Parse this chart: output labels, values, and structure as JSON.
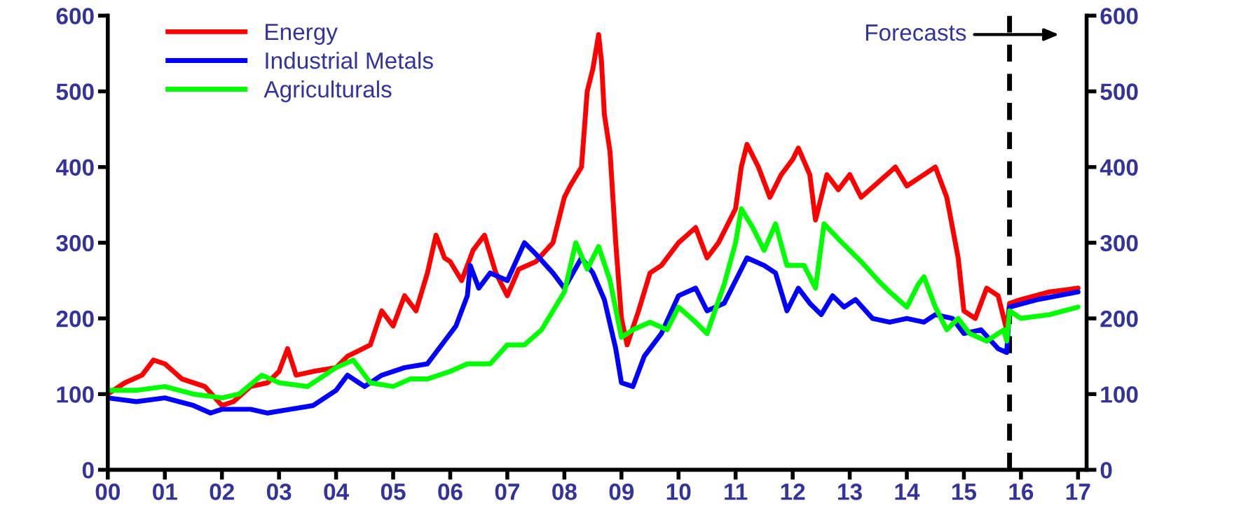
{
  "chart_data": {
    "type": "line",
    "xlim": [
      0,
      17.15
    ],
    "ylim": [
      0,
      600
    ],
    "yticks": [
      0,
      100,
      200,
      300,
      400,
      500,
      600
    ],
    "y2lim": [
      0,
      600
    ],
    "y2ticks": [
      0,
      100,
      200,
      300,
      400,
      500,
      600
    ],
    "xticks": [
      {
        "value": 0,
        "label": "00"
      },
      {
        "value": 1,
        "label": "01"
      },
      {
        "value": 2,
        "label": "02"
      },
      {
        "value": 3,
        "label": "03"
      },
      {
        "value": 4,
        "label": "04"
      },
      {
        "value": 5,
        "label": "05"
      },
      {
        "value": 6,
        "label": "06"
      },
      {
        "value": 7,
        "label": "07"
      },
      {
        "value": 8,
        "label": "08"
      },
      {
        "value": 9,
        "label": "09"
      },
      {
        "value": 10,
        "label": "10"
      },
      {
        "value": 11,
        "label": "11"
      },
      {
        "value": 12,
        "label": "12"
      },
      {
        "value": 13,
        "label": "13"
      },
      {
        "value": 14,
        "label": "14"
      },
      {
        "value": 15,
        "label": "15"
      },
      {
        "value": 16,
        "label": "16"
      },
      {
        "value": 17,
        "label": "17"
      }
    ],
    "legend": "top left",
    "grid": false,
    "marker": "none",
    "line_style": "solid",
    "ref_lines": [
      {
        "axis": "x",
        "value": 15.8,
        "label": "Forecasts",
        "color": "#000000",
        "line_style": "dashed"
      }
    ],
    "series": [
      {
        "name": "Energy",
        "color": "#ff0000",
        "x": [
          0,
          0.3,
          0.6,
          0.8,
          1.0,
          1.3,
          1.7,
          2.0,
          2.2,
          2.5,
          2.8,
          3.0,
          3.15,
          3.3,
          3.6,
          4.0,
          4.2,
          4.6,
          4.8,
          5.0,
          5.2,
          5.4,
          5.6,
          5.75,
          5.9,
          6.0,
          6.2,
          6.4,
          6.6,
          6.8,
          7.0,
          7.2,
          7.5,
          7.8,
          8.0,
          8.1,
          8.3,
          8.4,
          8.5,
          8.6,
          8.65,
          8.7,
          8.8,
          8.9,
          9.0,
          9.1,
          9.3,
          9.5,
          9.7,
          10.0,
          10.3,
          10.5,
          10.7,
          11.0,
          11.1,
          11.2,
          11.4,
          11.6,
          11.8,
          12.0,
          12.1,
          12.3,
          12.4,
          12.6,
          12.8,
          13.0,
          13.2,
          13.5,
          13.8,
          14.0,
          14.3,
          14.5,
          14.7,
          14.9,
          15.0,
          15.2,
          15.4,
          15.6,
          15.75,
          15.8,
          16.0,
          16.5,
          17.0
        ],
        "values": [
          100,
          115,
          125,
          145,
          140,
          120,
          110,
          85,
          90,
          110,
          115,
          130,
          160,
          125,
          130,
          135,
          150,
          165,
          210,
          190,
          230,
          210,
          260,
          310,
          280,
          275,
          250,
          290,
          310,
          260,
          230,
          265,
          275,
          300,
          360,
          375,
          400,
          500,
          530,
          575,
          540,
          470,
          420,
          300,
          200,
          165,
          210,
          260,
          270,
          300,
          320,
          280,
          300,
          345,
          400,
          430,
          400,
          360,
          390,
          410,
          425,
          390,
          330,
          390,
          370,
          390,
          360,
          380,
          400,
          375,
          390,
          400,
          360,
          280,
          210,
          200,
          240,
          230,
          185,
          220,
          225,
          235,
          240
        ]
      },
      {
        "name": "Industrial Metals",
        "color": "#0000ff",
        "x": [
          0,
          0.5,
          1.0,
          1.5,
          1.8,
          2.0,
          2.5,
          2.8,
          3.2,
          3.6,
          4.0,
          4.2,
          4.5,
          4.8,
          5.2,
          5.6,
          5.9,
          6.1,
          6.3,
          6.35,
          6.5,
          6.7,
          7.0,
          7.3,
          7.5,
          7.8,
          8.0,
          8.3,
          8.5,
          8.7,
          8.9,
          9.0,
          9.2,
          9.4,
          9.7,
          10.0,
          10.3,
          10.5,
          10.8,
          11.0,
          11.2,
          11.5,
          11.7,
          11.9,
          12.1,
          12.3,
          12.5,
          12.7,
          12.9,
          13.1,
          13.4,
          13.7,
          14.0,
          14.3,
          14.5,
          14.8,
          15.0,
          15.3,
          15.6,
          15.75,
          15.8,
          16.3,
          17.0
        ],
        "values": [
          95,
          90,
          95,
          85,
          75,
          80,
          80,
          75,
          80,
          85,
          105,
          125,
          110,
          125,
          135,
          140,
          170,
          190,
          230,
          270,
          240,
          260,
          250,
          300,
          285,
          260,
          240,
          280,
          260,
          225,
          160,
          115,
          110,
          150,
          180,
          230,
          240,
          210,
          220,
          250,
          280,
          270,
          260,
          210,
          240,
          220,
          205,
          230,
          215,
          225,
          200,
          195,
          200,
          195,
          205,
          200,
          180,
          185,
          160,
          155,
          215,
          225,
          235
        ]
      },
      {
        "name": "Agriculturals",
        "color": "#00ff00",
        "x": [
          0,
          0.5,
          1.0,
          1.5,
          2.0,
          2.3,
          2.7,
          3.0,
          3.5,
          4.0,
          4.3,
          4.6,
          5.0,
          5.3,
          5.6,
          6.0,
          6.3,
          6.7,
          7.0,
          7.3,
          7.6,
          8.0,
          8.2,
          8.4,
          8.6,
          8.8,
          9.0,
          9.2,
          9.5,
          9.8,
          10.0,
          10.3,
          10.5,
          10.8,
          11.0,
          11.1,
          11.3,
          11.5,
          11.7,
          11.9,
          12.2,
          12.4,
          12.55,
          12.8,
          13.0,
          13.2,
          13.5,
          13.7,
          14.0,
          14.2,
          14.3,
          14.5,
          14.7,
          14.9,
          15.1,
          15.4,
          15.7,
          15.75,
          15.8,
          16.0,
          16.5,
          17.0
        ],
        "values": [
          105,
          105,
          110,
          100,
          95,
          100,
          125,
          115,
          110,
          135,
          145,
          115,
          110,
          120,
          120,
          130,
          140,
          140,
          165,
          165,
          185,
          235,
          300,
          265,
          295,
          250,
          175,
          185,
          195,
          185,
          215,
          195,
          180,
          245,
          300,
          345,
          320,
          290,
          325,
          270,
          270,
          240,
          325,
          305,
          290,
          275,
          250,
          235,
          215,
          245,
          255,
          215,
          185,
          200,
          180,
          170,
          185,
          170,
          210,
          200,
          205,
          215
        ]
      }
    ]
  }
}
